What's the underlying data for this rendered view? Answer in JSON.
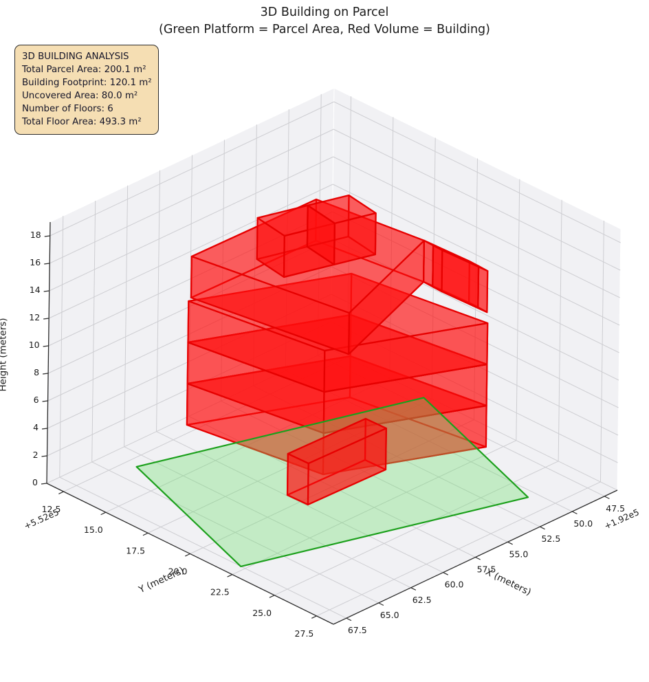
{
  "title": {
    "line1": "3D Building on Parcel",
    "line2": "(Green Platform = Parcel Area, Red Volume = Building)"
  },
  "info_box": {
    "lines": [
      "3D BUILDING ANALYSIS",
      "Total Parcel Area: 200.1 m²",
      "Building Footprint: 120.1 m²",
      "Uncovered Area: 80.0 m²",
      "Number of Floors: 6",
      "Total Floor Area: 493.3 m²"
    ],
    "background": "#f5deb3",
    "border": "#2b2b2b"
  },
  "chart_data": {
    "type": "3d-building-plot",
    "title": "3D Building on Parcel",
    "subtitle": "(Green Platform = Parcel Area, Red Volume = Building)",
    "stats": {
      "total_parcel_area_m2": 200.1,
      "building_footprint_m2": 120.1,
      "uncovered_area_m2": 80.0,
      "number_of_floors": 6,
      "total_floor_area_m2": 493.3
    },
    "axes": {
      "x": {
        "label": "X (meters)",
        "offset_text": "+1.92e5",
        "tick_values": [
          47.5,
          50.0,
          52.5,
          55.0,
          57.5,
          60.0,
          62.5,
          65.0,
          67.5
        ],
        "tick_labels": [
          "47.5",
          "50.0",
          "52.5",
          "55.0",
          "57.5",
          "60.0",
          "62.5",
          "65.0",
          "67.5"
        ],
        "lim": [
          46.5,
          68.5
        ]
      },
      "y": {
        "label": "Y (meters)",
        "offset_text": "+5.52e5",
        "tick_values": [
          12.5,
          15.0,
          17.5,
          20.0,
          22.5,
          25.0,
          27.5
        ],
        "tick_labels": [
          "12.5",
          "15.0",
          "17.5",
          "20.0",
          "22.5",
          "25.0",
          "27.5"
        ],
        "lim": [
          11.5,
          28.5
        ]
      },
      "z": {
        "label": "Height (meters)",
        "tick_values": [
          0,
          2,
          4,
          6,
          8,
          10,
          12,
          14,
          16,
          18
        ],
        "tick_labels": [
          "0",
          "2",
          "4",
          "6",
          "8",
          "10",
          "12",
          "14",
          "16",
          "18"
        ],
        "lim": [
          0,
          19
        ]
      }
    },
    "camera": {
      "origin": [
        481,
        508
      ],
      "du": [
        -413,
        195
      ],
      "dv": [
        417,
        205
      ],
      "dw": [
        5,
        -380
      ]
    },
    "parcel": {
      "name": "parcel-platform",
      "z": 0,
      "polygon": [
        [
          63.62,
          13.09
        ],
        [
          67.51,
          22.25
        ],
        [
          50.6,
          26.34
        ],
        [
          46.71,
          17.18
        ]
      ]
    },
    "building_levels": [
      {
        "name": "floor-1",
        "z": [
          3,
          6
        ],
        "footprint": [
          [
            61.6,
            14.5
          ],
          [
            60.2,
            21.5
          ],
          [
            51.55,
            24.54
          ],
          [
            52.95,
            17.54
          ]
        ],
        "after_parcel": false
      },
      {
        "name": "floor-2",
        "z": [
          6,
          9
        ],
        "footprint": [
          [
            61.6,
            14.5
          ],
          [
            60.2,
            21.5
          ],
          [
            51.55,
            24.54
          ],
          [
            52.95,
            17.54
          ]
        ],
        "after_parcel": false
      },
      {
        "name": "floor-3",
        "z": [
          9,
          12
        ],
        "footprint": [
          [
            61.6,
            14.5
          ],
          [
            60.2,
            21.5
          ],
          [
            51.55,
            24.54
          ],
          [
            52.95,
            17.54
          ]
        ],
        "after_parcel": false
      },
      {
        "name": "floor-4",
        "z": [
          12,
          15
        ],
        "footprint": [
          [
            61.22,
            14.36
          ],
          [
            59.53,
            22.41
          ],
          [
            50.76,
            20.14
          ],
          [
            51.71,
            14.47
          ]
        ],
        "after_parcel": false
      },
      {
        "name": "floor-4-annex-a",
        "z": [
          12,
          15
        ],
        "footprint": [
          [
            50.76,
            20.14
          ],
          [
            50.63,
            22.73
          ],
          [
            50.66,
            23.29
          ],
          [
            50.79,
            20.7
          ]
        ],
        "after_parcel": false
      },
      {
        "name": "floor-4-annex-b",
        "z": [
          12,
          15
        ],
        "footprint": [
          [
            50.79,
            20.7
          ],
          [
            50.66,
            23.29
          ],
          [
            50.69,
            23.85
          ],
          [
            50.82,
            21.26
          ]
        ],
        "after_parcel": false
      },
      {
        "name": "floor-5-a",
        "z": [
          15,
          18
        ],
        "footprint": [
          [
            58.86,
            16.43
          ],
          [
            59.23,
            18.31
          ],
          [
            56.24,
            19.0
          ],
          [
            55.87,
            17.12
          ]
        ],
        "after_parcel": false
      },
      {
        "name": "floor-5-b",
        "z": [
          15,
          18
        ],
        "footprint": [
          [
            55.87,
            17.12
          ],
          [
            56.24,
            19.0
          ],
          [
            53.8,
            19.57
          ],
          [
            53.43,
            17.69
          ]
        ],
        "after_parcel": false
      },
      {
        "name": "ground-floor",
        "z": [
          0,
          3
        ],
        "footprint": [
          [
            59.93,
            19.21
          ],
          [
            59.89,
            20.4
          ],
          [
            54.0,
            20.5
          ],
          [
            54.04,
            19.31
          ]
        ],
        "after_parcel": true
      }
    ],
    "colors": {
      "building_face": "#ff0f0f",
      "building_edge": "#e60000",
      "parcel_face": "#6ee06e",
      "parcel_edge": "#1ca01c",
      "pane": "#f1f1f4",
      "pane_edge": "#ffffff",
      "grid": "#cdcdd1",
      "spine": "#2b2b2b",
      "text": "#1a1a1a"
    },
    "legend_position": "none",
    "grid": true
  }
}
